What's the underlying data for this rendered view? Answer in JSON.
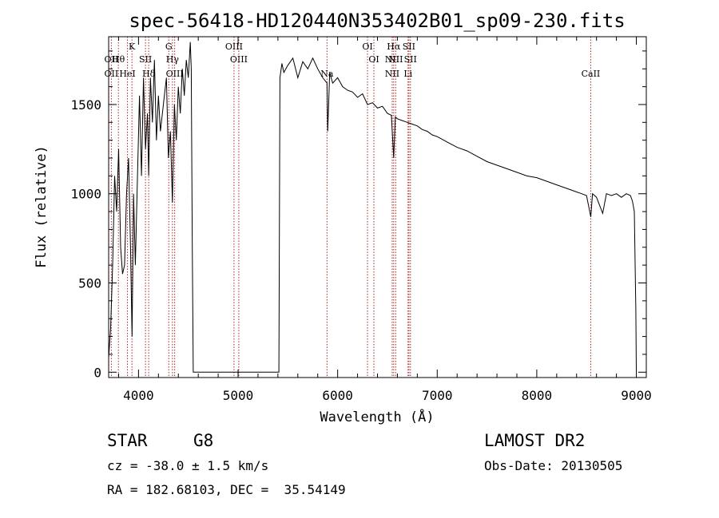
{
  "chart_data": {
    "type": "line",
    "title": "spec-56418-HD120440N353402B01_sp09-230.fits",
    "xlabel": "Wavelength (Å)",
    "ylabel": "Flux (relative)",
    "xlim": [
      3700,
      9100
    ],
    "ylim": [
      -30,
      1880
    ],
    "xticks": [
      4000,
      5000,
      6000,
      7000,
      8000,
      9000
    ],
    "yticks": [
      0,
      500,
      1000,
      1500
    ],
    "grid": false,
    "series": [
      {
        "x": [
          3700,
          3720,
          3740,
          3760,
          3780,
          3800,
          3820,
          3840,
          3860,
          3880,
          3900,
          3920,
          3935,
          3950,
          3968,
          3990,
          4010,
          4030,
          4050,
          4070,
          4090,
          4102,
          4120,
          4140,
          4160,
          4180,
          4200,
          4220,
          4250,
          4280,
          4300,
          4320,
          4340,
          4360,
          4380,
          4400,
          4420,
          4440,
          4460,
          4480,
          4500,
          4520,
          4530,
          4540,
          4550,
          5410,
          5420,
          5440,
          5460,
          5500,
          5550,
          5600,
          5650,
          5700,
          5750,
          5800,
          5850,
          5893,
          5900,
          5920,
          5950,
          6000,
          6050,
          6100,
          6150,
          6200,
          6250,
          6300,
          6350,
          6400,
          6450,
          6500,
          6540,
          6563,
          6580,
          6600,
          6650,
          6700,
          6750,
          6800,
          6850,
          6900,
          6950,
          7000,
          7100,
          7200,
          7300,
          7400,
          7500,
          7600,
          7700,
          7800,
          7900,
          8000,
          8100,
          8200,
          8300,
          8400,
          8450,
          8500,
          8542,
          8560,
          8600,
          8662,
          8700,
          8750,
          8800,
          8850,
          8900,
          8940,
          8960,
          8980,
          8995,
          9000
        ],
        "values": [
          80,
          250,
          600,
          1100,
          900,
          1250,
          700,
          550,
          600,
          1000,
          1200,
          700,
          200,
          1000,
          600,
          1100,
          1550,
          1100,
          1650,
          1250,
          1450,
          1100,
          1650,
          1400,
          1750,
          1300,
          1550,
          1350,
          1500,
          1650,
          1200,
          1350,
          950,
          1500,
          1300,
          1600,
          1450,
          1700,
          1550,
          1750,
          1650,
          1850,
          1700,
          700,
          0,
          0,
          1650,
          1730,
          1680,
          1720,
          1760,
          1650,
          1740,
          1700,
          1760,
          1700,
          1650,
          1620,
          1350,
          1680,
          1620,
          1650,
          1600,
          1580,
          1570,
          1540,
          1560,
          1500,
          1510,
          1480,
          1490,
          1450,
          1440,
          1200,
          1430,
          1420,
          1410,
          1400,
          1390,
          1380,
          1360,
          1350,
          1330,
          1320,
          1290,
          1260,
          1240,
          1210,
          1180,
          1160,
          1140,
          1120,
          1100,
          1090,
          1070,
          1050,
          1030,
          1010,
          1000,
          990,
          870,
          1000,
          980,
          890,
          1000,
          990,
          1000,
          980,
          1000,
          990,
          960,
          900,
          350,
          0
        ]
      }
    ],
    "lines": [
      {
        "wavelength": 3727,
        "labels": [
          "OII",
          "OII"
        ]
      },
      {
        "wavelength": 3798,
        "labels": [
          "Hθ"
        ]
      },
      {
        "wavelength": 3889,
        "labels": [
          "HeI"
        ]
      },
      {
        "wavelength": 3934,
        "labels": [
          "K"
        ]
      },
      {
        "wavelength": 4070,
        "labels": [
          "SII"
        ]
      },
      {
        "wavelength": 4102,
        "labels": [
          "Hδ"
        ]
      },
      {
        "wavelength": 4304,
        "labels": [
          "G"
        ]
      },
      {
        "wavelength": 4341,
        "labels": [
          "Hγ"
        ]
      },
      {
        "wavelength": 4363,
        "labels": [
          "OIII"
        ]
      },
      {
        "wavelength": 4959,
        "labels": [
          "OIII"
        ]
      },
      {
        "wavelength": 5007,
        "labels": [
          "OIII"
        ]
      },
      {
        "wavelength": 5893,
        "labels": [
          "Na"
        ]
      },
      {
        "wavelength": 6300,
        "labels": [
          "OI"
        ]
      },
      {
        "wavelength": 6364,
        "labels": [
          "OI"
        ]
      },
      {
        "wavelength": 6548,
        "labels": [
          "NII",
          "NII"
        ]
      },
      {
        "wavelength": 6563,
        "labels": [
          "Hα"
        ]
      },
      {
        "wavelength": 6583,
        "labels": [
          "NII"
        ]
      },
      {
        "wavelength": 6707,
        "labels": [
          "Li"
        ]
      },
      {
        "wavelength": 6716,
        "labels": [
          "SII"
        ]
      },
      {
        "wavelength": 6731,
        "labels": [
          "SII"
        ]
      },
      {
        "wavelength": 8542,
        "labels": [
          "CaII"
        ]
      }
    ],
    "line_color": "#b22222"
  },
  "info": {
    "class": "STAR",
    "subclass": "G8",
    "cz": "cz = -38.0 ± 1.5 km/s",
    "coords": "RA = 182.68103, DEC =  35.54149",
    "survey": "LAMOST DR2",
    "obs_date": "Obs-Date: 20130505"
  }
}
